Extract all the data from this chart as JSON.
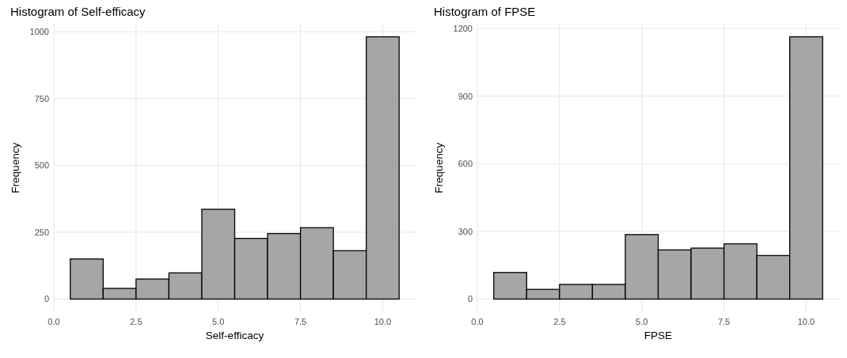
{
  "chart_data": [
    {
      "type": "histogram",
      "title": "Histogram of Self-efficacy",
      "xlabel": "Self-efficacy",
      "ylabel": "Frequency",
      "bins": [
        0.5,
        1.5,
        2.5,
        3.5,
        4.5,
        5.5,
        6.5,
        7.5,
        8.5,
        9.5,
        10.5
      ],
      "values": [
        150,
        40,
        75,
        98,
        336,
        227,
        245,
        267,
        181,
        981
      ],
      "color": "#a6a6a6",
      "xlim": [
        0,
        11
      ],
      "ylim": [
        -49,
        1030
      ],
      "xticks": [
        {
          "value": 0,
          "label": "0.0"
        },
        {
          "value": 2.5,
          "label": "2.5"
        },
        {
          "value": 5,
          "label": "5.0"
        },
        {
          "value": 7.5,
          "label": "7.5"
        },
        {
          "value": 10,
          "label": "10.0"
        }
      ],
      "yticks": [
        0,
        250,
        500,
        750,
        1000
      ],
      "grid": true
    },
    {
      "type": "histogram",
      "title": "Histogram of FPSE",
      "xlabel": "FPSE",
      "ylabel": "Frequency",
      "bins": [
        0.5,
        1.5,
        2.5,
        3.5,
        4.5,
        5.5,
        6.5,
        7.5,
        8.5,
        9.5,
        10.5
      ],
      "values": [
        118,
        43,
        65,
        65,
        286,
        218,
        226,
        245,
        193,
        1163
      ],
      "color": "#a6a6a6",
      "xlim": [
        0,
        11
      ],
      "ylim": [
        -58,
        1221
      ],
      "xticks": [
        {
          "value": 0,
          "label": "0.0"
        },
        {
          "value": 2.5,
          "label": "2.5"
        },
        {
          "value": 5,
          "label": "5.0"
        },
        {
          "value": 7.5,
          "label": "7.5"
        },
        {
          "value": 10,
          "label": "10.0"
        }
      ],
      "yticks": [
        0,
        300,
        600,
        900,
        1200
      ],
      "grid": true
    }
  ]
}
